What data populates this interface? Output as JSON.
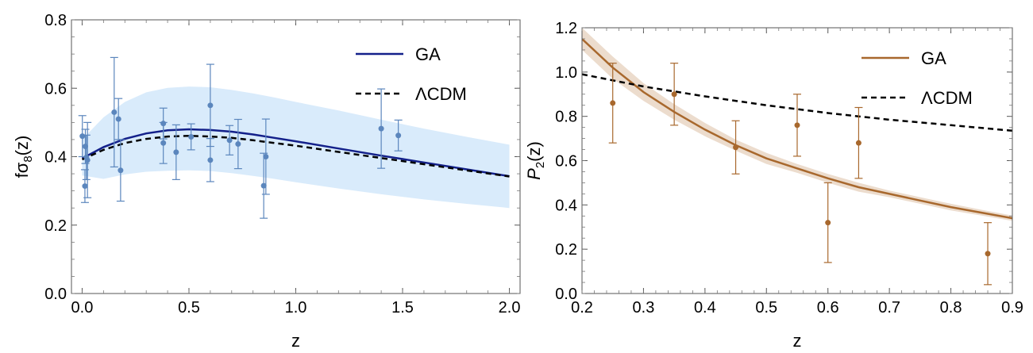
{
  "chart_data": [
    {
      "type": "scatter",
      "xlabel": "z",
      "ylabel": "fσ8(z)",
      "xlim": [
        -0.05,
        2.05
      ],
      "ylim": [
        0.0,
        0.8
      ],
      "xticks": [
        0.0,
        0.5,
        1.0,
        1.5,
        2.0
      ],
      "xtick_labels": [
        "0.0",
        "0.5",
        "1.0",
        "1.5",
        "2.0"
      ],
      "yticks": [
        0.0,
        0.2,
        0.4,
        0.6,
        0.8
      ],
      "ytick_labels": [
        "0.0",
        "0.2",
        "0.4",
        "0.6",
        "0.8"
      ],
      "legend": [
        "GA",
        "ΛCDM"
      ],
      "legend_position": "top-right",
      "colors": {
        "ga_line": "#13208a",
        "band": "#d9ebfb",
        "points": "#5b86bd",
        "lcdm": "#000000"
      },
      "ga_curve": {
        "x": [
          0.0,
          0.1,
          0.2,
          0.3,
          0.4,
          0.5,
          0.6,
          0.7,
          0.8,
          0.9,
          1.0,
          1.2,
          1.4,
          1.6,
          1.8,
          2.0
        ],
        "y": [
          0.395,
          0.428,
          0.452,
          0.468,
          0.477,
          0.48,
          0.478,
          0.473,
          0.465,
          0.455,
          0.445,
          0.424,
          0.403,
          0.383,
          0.363,
          0.343
        ]
      },
      "ga_band": {
        "x": [
          0.0,
          0.1,
          0.2,
          0.3,
          0.4,
          0.5,
          0.6,
          0.7,
          0.8,
          0.9,
          1.0,
          1.2,
          1.4,
          1.6,
          1.8,
          2.0
        ],
        "upper": [
          0.45,
          0.515,
          0.56,
          0.588,
          0.601,
          0.605,
          0.603,
          0.595,
          0.585,
          0.573,
          0.56,
          0.535,
          0.508,
          0.482,
          0.458,
          0.435
        ],
        "lower": [
          0.345,
          0.335,
          0.348,
          0.356,
          0.359,
          0.36,
          0.358,
          0.352,
          0.344,
          0.335,
          0.325,
          0.307,
          0.29,
          0.275,
          0.262,
          0.25
        ]
      },
      "lcdm_curve": {
        "x": [
          0.0,
          0.1,
          0.2,
          0.3,
          0.4,
          0.5,
          0.6,
          0.7,
          0.8,
          0.9,
          1.0,
          1.2,
          1.4,
          1.6,
          1.8,
          2.0
        ],
        "y": [
          0.392,
          0.42,
          0.44,
          0.452,
          0.459,
          0.461,
          0.459,
          0.455,
          0.448,
          0.44,
          0.432,
          0.414,
          0.396,
          0.378,
          0.36,
          0.342
        ]
      },
      "points": [
        {
          "x": 0.001,
          "y": 0.46,
          "err": 0.06
        },
        {
          "x": 0.013,
          "y": 0.314,
          "err": 0.048
        },
        {
          "x": 0.015,
          "y": 0.43,
          "err": 0.05
        },
        {
          "x": 0.02,
          "y": 0.398,
          "err": 0.065
        },
        {
          "x": 0.025,
          "y": 0.39,
          "err": 0.11
        },
        {
          "x": 0.15,
          "y": 0.53,
          "err": 0.16
        },
        {
          "x": 0.17,
          "y": 0.51,
          "err": 0.06
        },
        {
          "x": 0.18,
          "y": 0.36,
          "err": 0.09
        },
        {
          "x": 0.38,
          "y": 0.44,
          "err": 0.06
        },
        {
          "x": 0.38,
          "y": 0.497,
          "err": 0.045
        },
        {
          "x": 0.44,
          "y": 0.413,
          "err": 0.08
        },
        {
          "x": 0.51,
          "y": 0.458,
          "err": 0.038
        },
        {
          "x": 0.6,
          "y": 0.39,
          "err": 0.063
        },
        {
          "x": 0.6,
          "y": 0.55,
          "err": 0.12
        },
        {
          "x": 0.69,
          "y": 0.448,
          "err": 0.043
        },
        {
          "x": 0.73,
          "y": 0.437,
          "err": 0.072
        },
        {
          "x": 0.85,
          "y": 0.315,
          "err": 0.095
        },
        {
          "x": 0.86,
          "y": 0.4,
          "err": 0.11
        },
        {
          "x": 1.4,
          "y": 0.482,
          "err": 0.116
        },
        {
          "x": 1.48,
          "y": 0.462,
          "err": 0.045
        }
      ]
    },
    {
      "type": "scatter",
      "xlabel": "z",
      "ylabel": "P2(z)",
      "xlim": [
        0.2,
        0.9
      ],
      "ylim": [
        0.0,
        1.2
      ],
      "xticks": [
        0.2,
        0.3,
        0.4,
        0.5,
        0.6,
        0.7,
        0.8,
        0.9
      ],
      "xtick_labels": [
        "0.2",
        "0.3",
        "0.4",
        "0.5",
        "0.6",
        "0.7",
        "0.8",
        "0.9"
      ],
      "yticks": [
        0.0,
        0.2,
        0.4,
        0.6,
        0.8,
        1.0,
        1.2
      ],
      "ytick_labels": [
        "0.0",
        "0.2",
        "0.4",
        "0.6",
        "0.8",
        "1.0",
        "1.2"
      ],
      "legend": [
        "GA",
        "ΛCDM"
      ],
      "legend_position": "top-right",
      "colors": {
        "ga_line": "#a8682d",
        "band": "#ecdccd",
        "points": "#a8682d",
        "lcdm": "#000000"
      },
      "ga_curve": {
        "x": [
          0.2,
          0.25,
          0.3,
          0.35,
          0.4,
          0.45,
          0.5,
          0.55,
          0.6,
          0.65,
          0.7,
          0.75,
          0.8,
          0.85,
          0.9
        ],
        "y": [
          1.15,
          1.02,
          0.91,
          0.82,
          0.74,
          0.67,
          0.61,
          0.565,
          0.52,
          0.48,
          0.45,
          0.42,
          0.39,
          0.365,
          0.34
        ]
      },
      "ga_band": {
        "x": [
          0.2,
          0.25,
          0.3,
          0.35,
          0.4,
          0.45,
          0.5,
          0.55,
          0.6,
          0.65,
          0.7,
          0.75,
          0.8,
          0.85,
          0.9
        ],
        "upper": [
          1.2,
          1.07,
          0.95,
          0.855,
          0.77,
          0.695,
          0.635,
          0.585,
          0.54,
          0.5,
          0.465,
          0.435,
          0.405,
          0.378,
          0.352
        ],
        "lower": [
          1.1,
          0.97,
          0.87,
          0.785,
          0.71,
          0.645,
          0.585,
          0.545,
          0.5,
          0.46,
          0.435,
          0.405,
          0.375,
          0.352,
          0.328
        ]
      },
      "lcdm_curve": {
        "x": [
          0.2,
          0.3,
          0.4,
          0.5,
          0.6,
          0.7,
          0.8,
          0.9
        ],
        "y": [
          0.99,
          0.935,
          0.89,
          0.85,
          0.815,
          0.785,
          0.76,
          0.735
        ]
      },
      "points": [
        {
          "x": 0.25,
          "y": 0.86,
          "err": 0.18
        },
        {
          "x": 0.35,
          "y": 0.9,
          "err": 0.14
        },
        {
          "x": 0.45,
          "y": 0.66,
          "err": 0.12
        },
        {
          "x": 0.55,
          "y": 0.76,
          "err": 0.14
        },
        {
          "x": 0.6,
          "y": 0.32,
          "err": 0.18
        },
        {
          "x": 0.65,
          "y": 0.68,
          "err": 0.16
        },
        {
          "x": 0.86,
          "y": 0.18,
          "err": 0.14
        }
      ]
    }
  ]
}
